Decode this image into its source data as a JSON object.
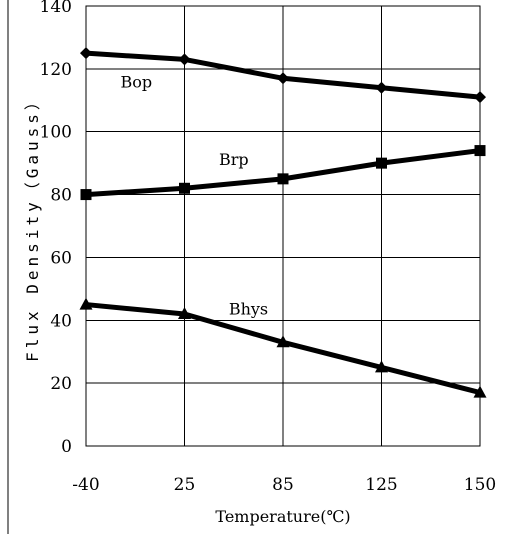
{
  "chart_data": {
    "type": "line",
    "title": "",
    "xlabel": "Temperature(℃)",
    "ylabel": "Flux Density（Gauss）",
    "categories": [
      "-40",
      "25",
      "85",
      "125",
      "150"
    ],
    "ylim": [
      0,
      140
    ],
    "yticks": [
      0,
      20,
      40,
      60,
      80,
      100,
      120,
      140
    ],
    "grid": true,
    "series": [
      {
        "name": "Bop",
        "marker": "diamond",
        "values": [
          125,
          123,
          117,
          114,
          111
        ]
      },
      {
        "name": "Brp",
        "marker": "square",
        "values": [
          80,
          82,
          85,
          90,
          94
        ]
      },
      {
        "name": "Bhys",
        "marker": "triangle",
        "values": [
          45,
          42,
          33,
          25,
          17
        ]
      }
    ],
    "colors": {
      "line": "#000000",
      "grid": "#000000",
      "background": "#ffffff"
    }
  }
}
